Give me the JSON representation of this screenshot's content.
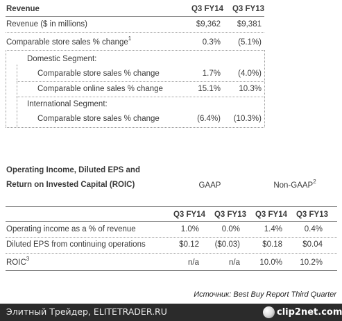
{
  "revenue_table": {
    "title": "Revenue",
    "col1": "Q3 FY14",
    "col2": "Q3 FY13",
    "rows": [
      {
        "label": "Revenue ($ in millions)",
        "sup": "",
        "v1": "$9,362",
        "v2": "$9,381"
      },
      {
        "label": "Comparable store sales % change",
        "sup": "1",
        "v1": "0.3%",
        "v2": "(5.1%)"
      }
    ],
    "domestic_heading": "Domestic Segment:",
    "domestic_rows": [
      {
        "label": "Comparable store sales % change",
        "v1": "1.7%",
        "v2": "(4.0%)"
      },
      {
        "label": "Comparable online sales % change",
        "v1": "15.1%",
        "v2": "10.3%"
      }
    ],
    "international_heading": "International Segment:",
    "international_rows": [
      {
        "label": "Comparable store sales % change",
        "v1": "(6.4%)",
        "v2": "(10.3%)"
      }
    ]
  },
  "operating_table": {
    "title_line1": "Operating Income, Diluted EPS and",
    "title_line2": "Return on Invested Capital (ROIC)",
    "gaap_label": "GAAP",
    "nongaap_label": "Non-GAAP",
    "nongaap_sup": "2",
    "columns": [
      "Q3 FY14",
      "Q3 FY13",
      "Q3 FY14",
      "Q3 FY13"
    ],
    "rows": [
      {
        "label": "Operating income as a % of revenue",
        "sup": "",
        "values": [
          "1.0%",
          "0.0%",
          "1.4%",
          "0.4%"
        ]
      },
      {
        "label": "Diluted EPS from continuing operations",
        "sup": "",
        "values": [
          "$0.12",
          "($0.03)",
          "$0.18",
          "$0.04"
        ]
      },
      {
        "label": "ROIC",
        "sup": "3",
        "values": [
          "n/a",
          "n/a",
          "10.0%",
          "10.2%"
        ]
      }
    ]
  },
  "source_note": "Источник: Best Buy Report Third Quarter",
  "footer": {
    "text": "Элитный Трейдер, ELITETRADER.RU",
    "logo_text": "clip2net.com"
  }
}
